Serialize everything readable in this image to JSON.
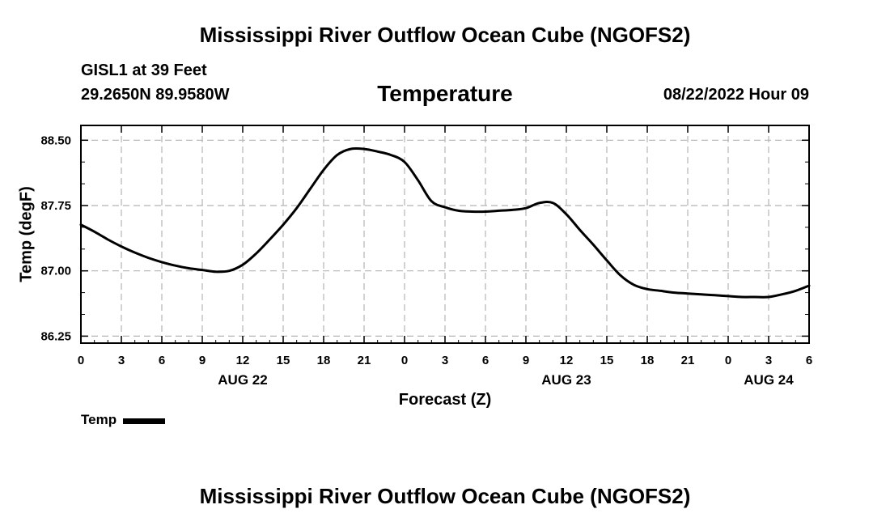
{
  "header": {
    "title": "Mississippi River Outflow Ocean Cube (NGOFS2)",
    "station": "GISL1 at 39 Feet",
    "coords": "29.2650N  89.9580W",
    "variable": "Temperature",
    "datetime": "08/22/2022 Hour 09"
  },
  "footer": {
    "title": "Mississippi River Outflow Ocean Cube (NGOFS2)"
  },
  "chart_data": {
    "type": "line",
    "title": "Temperature",
    "xlabel": "Forecast (Z)",
    "ylabel": "Temp (degF)",
    "xlim": [
      0,
      54
    ],
    "ylim": [
      86.17,
      88.67
    ],
    "yticks": [
      86.25,
      87.0,
      87.75,
      88.5
    ],
    "ytick_labels": [
      "86.25",
      "87.00",
      "87.75",
      "88.50"
    ],
    "xticks": [
      0,
      3,
      6,
      9,
      12,
      15,
      18,
      21,
      24,
      27,
      30,
      33,
      36,
      39,
      42,
      45,
      48,
      51,
      54
    ],
    "xtick_labels": [
      "0",
      "3",
      "6",
      "9",
      "12",
      "15",
      "18",
      "21",
      "0",
      "3",
      "6",
      "9",
      "12",
      "15",
      "18",
      "21",
      "0",
      "3",
      "6"
    ],
    "date_labels": [
      {
        "x": 12,
        "label": "AUG 22"
      },
      {
        "x": 36,
        "label": "AUG 23"
      },
      {
        "x": 51,
        "label": "AUG 24"
      }
    ],
    "grid": true,
    "legend": {
      "position": "bottom-left",
      "label": "Temp"
    },
    "series": [
      {
        "name": "Temp",
        "x": [
          0,
          1,
          2,
          3,
          4,
          5,
          6,
          7,
          8,
          9,
          10,
          11,
          12,
          13,
          14,
          15,
          16,
          17,
          18,
          19,
          20,
          21,
          22,
          23,
          24,
          25,
          26,
          27,
          28,
          29,
          30,
          31,
          32,
          33,
          34,
          35,
          36,
          37,
          38,
          39,
          40,
          41,
          42,
          43,
          44,
          45,
          46,
          47,
          48,
          49,
          50,
          51,
          52,
          53,
          54
        ],
        "y": [
          87.53,
          87.45,
          87.36,
          87.28,
          87.21,
          87.15,
          87.1,
          87.06,
          87.03,
          87.01,
          86.99,
          87.0,
          87.07,
          87.2,
          87.36,
          87.53,
          87.72,
          87.94,
          88.16,
          88.33,
          88.4,
          88.4,
          88.37,
          88.33,
          88.25,
          88.04,
          87.8,
          87.73,
          87.69,
          87.68,
          87.68,
          87.69,
          87.7,
          87.72,
          87.78,
          87.78,
          87.65,
          87.47,
          87.3,
          87.12,
          86.95,
          86.84,
          86.79,
          86.77,
          86.75,
          86.74,
          86.73,
          86.72,
          86.71,
          86.7,
          86.7,
          86.7,
          86.73,
          86.77,
          86.83
        ]
      }
    ]
  }
}
